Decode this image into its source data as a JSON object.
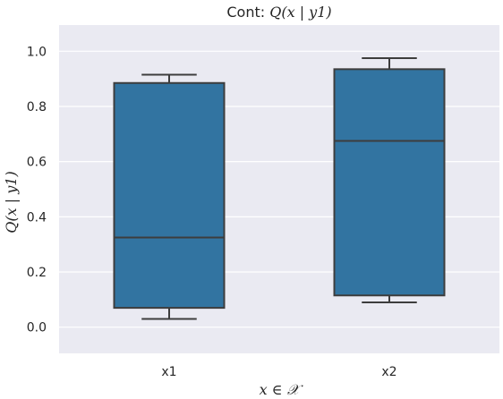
{
  "chart_data": {
    "type": "box",
    "title": {
      "prefix": "Cont: ",
      "math": "Q(x | y1)"
    },
    "xlabel": "x ∈ 𝒳",
    "ylabel": "Q(x | y1)",
    "categories": [
      "x1",
      "x2"
    ],
    "boxes": [
      {
        "category": "x1",
        "whisker_low": 0.03,
        "q1": 0.07,
        "median": 0.325,
        "q3": 0.885,
        "whisker_high": 0.915
      },
      {
        "category": "x2",
        "whisker_low": 0.09,
        "q1": 0.115,
        "median": 0.675,
        "q3": 0.935,
        "whisker_high": 0.975
      }
    ],
    "ylim": [
      -0.095,
      1.095
    ],
    "yticks": [
      "0.0",
      "0.2",
      "0.4",
      "0.6",
      "0.8",
      "1.0"
    ],
    "grid": true,
    "colors": {
      "background": "#EAEAF2",
      "grid": "#FFFFFF",
      "box_fill": "#3274A1",
      "line": "#3D3D3D"
    }
  }
}
